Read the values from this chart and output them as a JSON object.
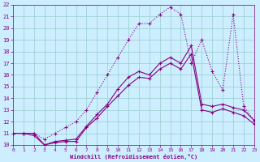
{
  "xlabel": "Windchill (Refroidissement éolien,°C)",
  "background_color": "#cceeff",
  "grid_color": "#99cccc",
  "line_color": "#880088",
  "x_hours": [
    0,
    1,
    2,
    3,
    4,
    5,
    6,
    7,
    8,
    9,
    10,
    11,
    12,
    13,
    14,
    15,
    16,
    17,
    18,
    19,
    20,
    21,
    22,
    23
  ],
  "temp_line": [
    11.0,
    11.0,
    11.0,
    10.0,
    10.3,
    10.4,
    10.5,
    11.6,
    12.6,
    13.5,
    14.8,
    15.8,
    16.3,
    16.0,
    17.0,
    17.5,
    17.0,
    18.5,
    13.5,
    13.3,
    13.5,
    13.2,
    13.0,
    12.1
  ],
  "windchill_line": [
    11.0,
    11.0,
    10.8,
    10.0,
    10.2,
    10.3,
    10.3,
    11.5,
    12.3,
    13.3,
    14.2,
    15.1,
    15.8,
    15.7,
    16.5,
    17.0,
    16.5,
    17.8,
    13.0,
    12.8,
    13.1,
    12.8,
    12.5,
    11.8
  ],
  "dotted_line": [
    11.0,
    11.0,
    11.0,
    10.5,
    11.0,
    11.5,
    12.0,
    13.0,
    14.5,
    16.0,
    17.5,
    19.0,
    20.4,
    20.4,
    21.2,
    21.8,
    21.2,
    17.0,
    19.0,
    16.3,
    14.7,
    21.2,
    13.3,
    12.1
  ],
  "ylim": [
    10,
    22
  ],
  "xlim": [
    0,
    23
  ],
  "yticks": [
    10,
    11,
    12,
    13,
    14,
    15,
    16,
    17,
    18,
    19,
    20,
    21,
    22
  ],
  "xticks": [
    0,
    1,
    2,
    3,
    4,
    5,
    6,
    7,
    8,
    9,
    10,
    11,
    12,
    13,
    14,
    15,
    16,
    17,
    18,
    19,
    20,
    21,
    22,
    23
  ]
}
